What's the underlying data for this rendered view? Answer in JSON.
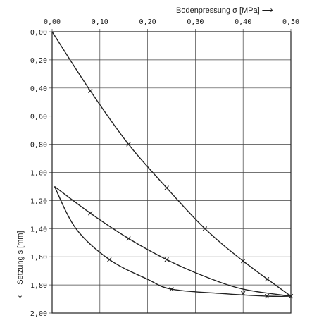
{
  "chart_data": {
    "type": "line",
    "x_axis_label": "Bodenpressung σ [MPa] ⟶",
    "y_axis_label": "⟵ Setzung s [mm]",
    "x_ticks": [
      "0,00",
      "0,10",
      "0,20",
      "0,30",
      "0,40",
      "0,50"
    ],
    "y_ticks": [
      "0,00",
      "0,20",
      "0,40",
      "0,60",
      "0,80",
      "1,00",
      "1,20",
      "1,40",
      "1,60",
      "1,80",
      "2,00"
    ],
    "xlim": [
      0,
      0.5
    ],
    "ylim": [
      0,
      2.0
    ],
    "y_inverted": true,
    "x_axis_position": "top",
    "grid": true,
    "series": [
      {
        "points": [
          [
            0.0,
            0.0
          ],
          [
            0.08,
            0.42
          ],
          [
            0.16,
            0.8
          ],
          [
            0.24,
            1.11
          ],
          [
            0.32,
            1.4
          ],
          [
            0.4,
            1.63
          ],
          [
            0.5,
            1.88
          ]
        ],
        "markers": [
          [
            0.08,
            0.42
          ],
          [
            0.16,
            0.8
          ],
          [
            0.24,
            1.11
          ],
          [
            0.32,
            1.4
          ],
          [
            0.4,
            1.63
          ],
          [
            0.5,
            1.88
          ]
        ]
      },
      {
        "points": [
          [
            0.005,
            1.1
          ],
          [
            0.08,
            1.29
          ],
          [
            0.16,
            1.47
          ],
          [
            0.24,
            1.62
          ],
          [
            0.32,
            1.74
          ],
          [
            0.4,
            1.83
          ],
          [
            0.5,
            1.88
          ]
        ],
        "markers": [
          [
            0.08,
            1.29
          ],
          [
            0.16,
            1.47
          ],
          [
            0.24,
            1.62
          ],
          [
            0.45,
            1.76
          ]
        ]
      },
      {
        "points": [
          [
            0.005,
            1.1
          ],
          [
            0.05,
            1.4
          ],
          [
            0.12,
            1.62
          ],
          [
            0.2,
            1.76
          ],
          [
            0.25,
            1.83
          ],
          [
            0.35,
            1.86
          ],
          [
            0.45,
            1.88
          ],
          [
            0.5,
            1.88
          ]
        ],
        "markers": [
          [
            0.12,
            1.62
          ],
          [
            0.25,
            1.83
          ],
          [
            0.4,
            1.86
          ],
          [
            0.45,
            1.88
          ]
        ]
      }
    ]
  }
}
